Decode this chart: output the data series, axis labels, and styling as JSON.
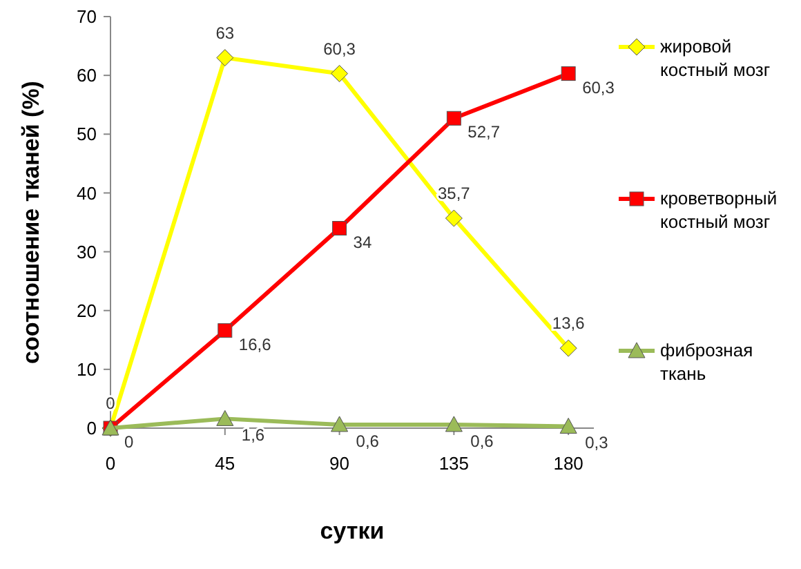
{
  "chart_data": {
    "type": "line",
    "xlabel": "сутки",
    "ylabel": "соотношение тканей (%)",
    "x": [
      0,
      45,
      90,
      135,
      180
    ],
    "xlim": [
      0,
      190
    ],
    "xticks": [
      0,
      45,
      90,
      135,
      180
    ],
    "ylim": [
      0,
      70
    ],
    "yticks": [
      0,
      10,
      20,
      30,
      40,
      50,
      60,
      70
    ],
    "grid": false,
    "legend": "right",
    "series": [
      {
        "name": "жировой костный мозг",
        "color": "#ffff00",
        "marker": "diamond",
        "values": [
          0,
          63,
          60.3,
          35.7,
          13.6
        ],
        "value_labels": [
          "0",
          "63",
          "60,3",
          "35,7",
          "13,6"
        ]
      },
      {
        "name": "кроветворный костный мозг",
        "color": "#ff0000",
        "marker": "square",
        "values": [
          0,
          16.6,
          34,
          52.7,
          60.3
        ],
        "value_labels": [
          "0",
          "16,6",
          "34",
          "52,7",
          "60,3"
        ]
      },
      {
        "name": "фиброзная ткань",
        "color": "#9bbb59",
        "marker": "triangle",
        "values": [
          0,
          1.6,
          0.6,
          0.6,
          0.3
        ],
        "value_labels": [
          null,
          "1,6",
          "0,6",
          "0,6",
          "0,3"
        ]
      }
    ]
  }
}
